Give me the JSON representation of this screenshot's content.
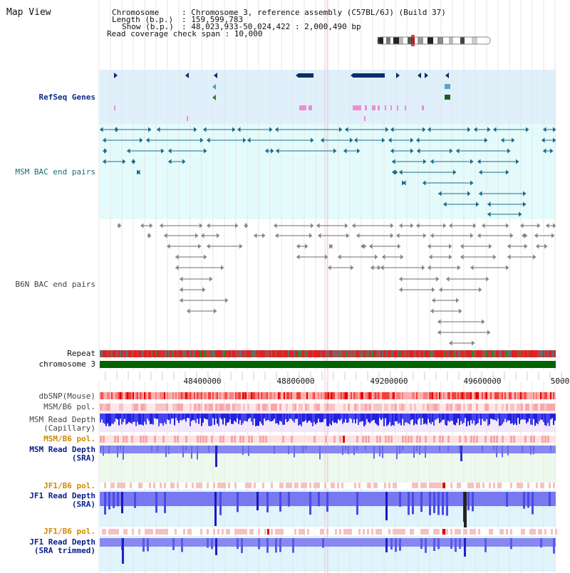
{
  "app": {
    "title": "Map View"
  },
  "info": {
    "chromosome_key": "Chromosome",
    "chromosome_val": ": Chromosome 3, reference assembly (C57BL/6J) (Build 37)",
    "length_key": "Length (b.p.)",
    "length_val": ": 159,599,783",
    "show_key": "Show (b.p.)",
    "show_val": ": 48,023,933-50,024,422 : 2,000,490 bp",
    "coverage_line": "Read coverage check span : 10,000"
  },
  "tracks": {
    "refseq": "RefSeq Genes",
    "msm_bac": "MSM BAC end pairs",
    "b6n_bac": "B6N BAC end pairs",
    "repeat": "Repeat",
    "chromosome": "chromosome 3",
    "dbsnp": "dbSNP(Mouse)",
    "msm_b6_pol_1": "MSM/B6 pol.",
    "msm_depth_cap_1": "MSM Read Depth",
    "msm_depth_cap_2": "(Capillary)",
    "msm_b6_pol_2": "MSM/B6 pol.",
    "msm_depth_sra_1": "MSM Read Depth",
    "msm_depth_sra_2": "(SRA)",
    "jf1_b6_pol_1": "JF1/B6 pol.",
    "jf1_depth_sra_1": "JF1 Read Depth",
    "jf1_depth_sra_2": "(SRA)",
    "jf1_b6_pol_2": "JF1/B6 pol.",
    "jf1_depth_trim_1": "JF1 Read Depth",
    "jf1_depth_trim_2": "(SRA trimmed)"
  },
  "axis": {
    "ticks": [
      "48400000",
      "48800000",
      "49200000",
      "49600000",
      "5000"
    ]
  },
  "colors": {
    "refseq_bg": "#dff0fb",
    "msm_bac_bg": "#e4fbfb",
    "gene_navy": "#0b2d6a",
    "gene_pink": "#f28ad2",
    "msm_line": "#1e6c8a",
    "b6n_line": "#6e6e6e",
    "chrom_green": "#006400",
    "depth_blue": "#2020e0",
    "depth_light": "#8080f0"
  }
}
